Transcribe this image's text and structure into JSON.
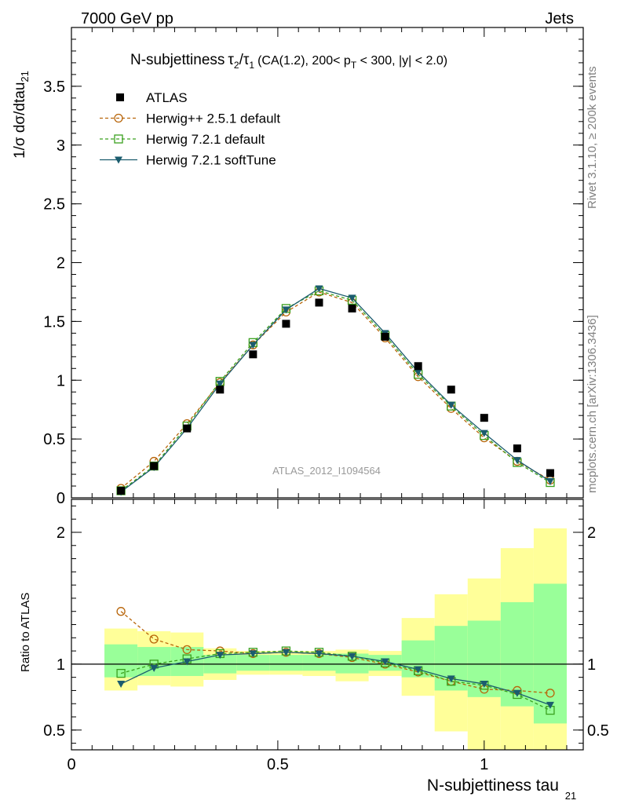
{
  "header": {
    "left": "7000 GeV pp",
    "right": "Jets"
  },
  "side_labels": {
    "rivet": "Rivet 3.1.10, ≥ 200k events",
    "mcplots": "mcplots.cern.ch [arXiv:1306.3436]"
  },
  "colors": {
    "atlas": "#000000",
    "herwigpp": "#b8650a",
    "herwig721": "#3aa01e",
    "softtune": "#1b5c6e",
    "band_outer": "#ffff99",
    "band_inner": "#99ff99"
  },
  "chart_data": [
    {
      "type": "line",
      "title": "N-subjettiness τ₂/τ₁ (CA(1.2), 200< p_T < 300, |y| < 2.0)",
      "title_parts": {
        "main": "N-subjettiness",
        "tau2": "τ",
        "sub2": "2",
        "slash": "/",
        "tau1": "τ",
        "sub1": "1",
        "rest1": "(CA(1.2), 200< p",
        "subT": "T",
        "rest2": " < 300, |y| < 2.0)"
      },
      "ylabel": "1/σ dσ/dtau",
      "ylabel_sub": "21",
      "xlim": [
        0,
        1.24
      ],
      "ylim": [
        0,
        4.0
      ],
      "yticks": [
        0,
        0.5,
        1,
        1.5,
        2,
        2.5,
        3,
        3.5
      ],
      "ytick_labels": [
        "0",
        "0.5",
        "1",
        "1.5",
        "2",
        "2.5",
        "3",
        "3.5"
      ],
      "watermark": "ATLAS_2012_I1094564",
      "x": [
        0.12,
        0.2,
        0.28,
        0.36,
        0.44,
        0.52,
        0.6,
        0.68,
        0.76,
        0.84,
        0.92,
        1.0,
        1.08,
        1.16
      ],
      "series": [
        {
          "name": "ATLAS",
          "marker": "square",
          "values": [
            0.06,
            0.27,
            0.59,
            0.92,
            1.22,
            1.48,
            1.66,
            1.61,
            1.37,
            1.12,
            0.92,
            0.68,
            0.42,
            0.21
          ]
        },
        {
          "name": "Herwig++ 2.5.1 default",
          "marker": "circle",
          "values": [
            0.08,
            0.31,
            0.63,
            0.98,
            1.3,
            1.58,
            1.75,
            1.66,
            1.36,
            1.03,
            0.76,
            0.51,
            0.31,
            0.15
          ]
        },
        {
          "name": "Herwig 7.2.1 default",
          "marker": "open-square",
          "values": [
            0.06,
            0.27,
            0.61,
            0.99,
            1.32,
            1.61,
            1.76,
            1.68,
            1.38,
            1.05,
            0.78,
            0.53,
            0.3,
            0.13
          ]
        },
        {
          "name": "Herwig 7.2.1 softTune",
          "marker": "triangle-down",
          "values": [
            0.05,
            0.26,
            0.59,
            0.97,
            1.3,
            1.6,
            1.78,
            1.7,
            1.4,
            1.07,
            0.79,
            0.55,
            0.32,
            0.14
          ]
        }
      ]
    },
    {
      "type": "line",
      "ylabel": "Ratio to ATLAS",
      "xlabel": "N-subjettiness tau",
      "xlabel_sub": "21",
      "xlim": [
        0,
        1.24
      ],
      "ylim": [
        0.35,
        2.25
      ],
      "yticks": [
        0.5,
        1,
        2
      ],
      "ytick_labels": [
        "0.5",
        "1",
        "2"
      ],
      "xticks": [
        0,
        0.5,
        1
      ],
      "xtick_labels": [
        "0",
        "0.5",
        "1"
      ],
      "bin_edges": [
        0.08,
        0.16,
        0.24,
        0.32,
        0.4,
        0.48,
        0.56,
        0.64,
        0.72,
        0.8,
        0.88,
        0.96,
        1.04,
        1.12,
        1.2
      ],
      "band_outer": {
        "low": [
          0.8,
          0.84,
          0.83,
          0.88,
          0.92,
          0.92,
          0.91,
          0.87,
          0.91,
          0.76,
          0.49,
          0.35,
          0.35,
          0.35
        ],
        "high": [
          1.27,
          1.25,
          1.24,
          1.12,
          1.1,
          1.1,
          1.1,
          1.11,
          1.1,
          1.35,
          1.53,
          1.65,
          1.88,
          2.03
        ]
      },
      "band_inner": {
        "low": [
          0.9,
          0.91,
          0.91,
          0.93,
          0.95,
          0.95,
          0.95,
          0.93,
          0.95,
          0.9,
          0.8,
          0.75,
          0.68,
          0.55
        ],
        "high": [
          1.15,
          1.13,
          1.13,
          1.07,
          1.07,
          1.07,
          1.07,
          1.08,
          1.07,
          1.18,
          1.29,
          1.33,
          1.47,
          1.61
        ]
      },
      "series": [
        {
          "name": "Herwig++ 2.5.1 default",
          "marker": "circle",
          "values": [
            1.4,
            1.19,
            1.11,
            1.1,
            1.08,
            1.09,
            1.08,
            1.05,
            1.0,
            0.94,
            0.87,
            0.81,
            0.8,
            0.78
          ]
        },
        {
          "name": "Herwig 7.2.1 default",
          "marker": "open-square",
          "values": [
            0.93,
            1.0,
            1.04,
            1.08,
            1.09,
            1.1,
            1.09,
            1.06,
            1.01,
            0.95,
            0.87,
            0.84,
            0.77,
            0.65
          ]
        },
        {
          "name": "Herwig 7.2.1 softTune",
          "marker": "triangle-down",
          "values": [
            0.85,
            0.97,
            1.02,
            1.07,
            1.08,
            1.09,
            1.08,
            1.06,
            1.02,
            0.96,
            0.89,
            0.85,
            0.78,
            0.69
          ]
        }
      ]
    }
  ]
}
